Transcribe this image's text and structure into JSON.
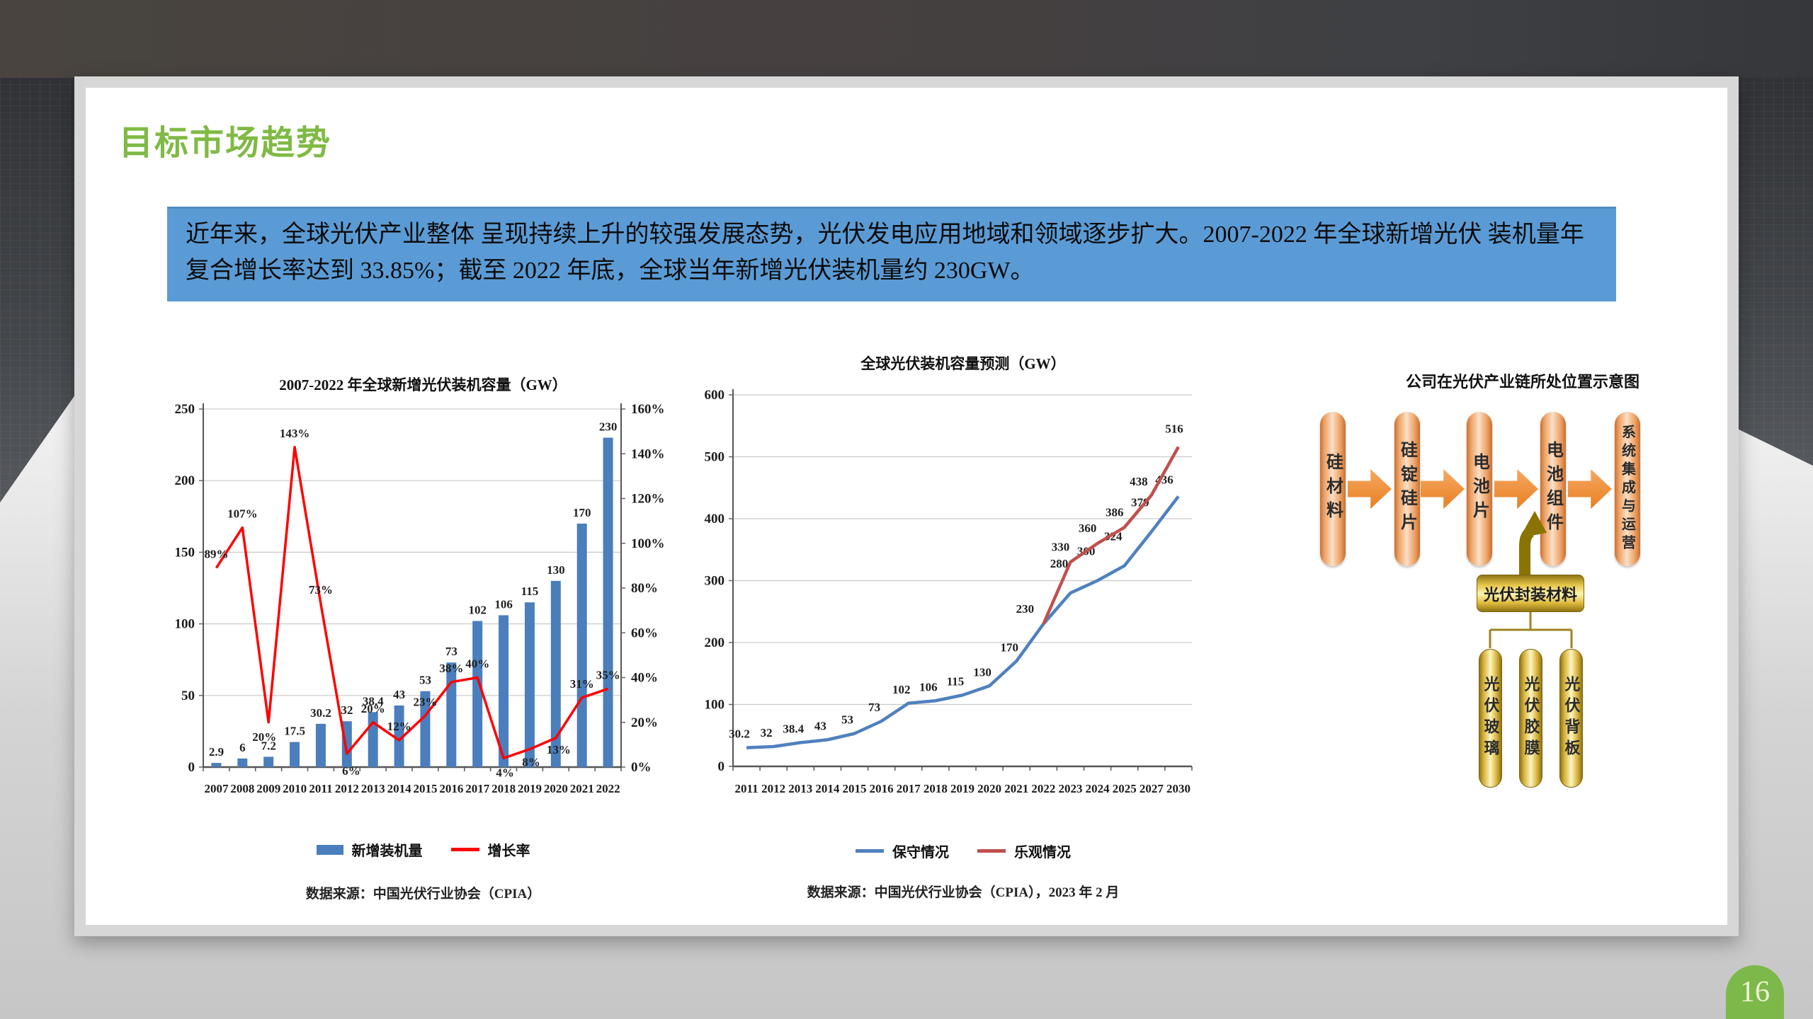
{
  "page_badge": {
    "number": "16"
  },
  "slide": {
    "title": "目标市场趋势",
    "intro_text": "近年来，全球光伏产业整体 呈现持续上升的较强发展态势，光伏发电应用地域和领域逐步扩大。2007-2022 年全球新增光伏 装机量年复合增长率达到 33.85%；截至 2022 年底，全球当年新增光伏装机量约 230GW。"
  },
  "colors": {
    "title_green": "#80ba45",
    "intro_box_blue": "#5b9bd5",
    "bar_blue": "#4a7ebc",
    "growth_line_red": "#ff0000",
    "conservative_blue": "#4f81bd",
    "optimistic_red": "#c0504d",
    "chain_orange": "#e87d1e",
    "gold": "#d4af37",
    "badge_green": "#7cb84a"
  },
  "chart_data": [
    {
      "id": "chart-left",
      "type": "bar",
      "title": "2007-2022 年全球新增光伏装机容量（GW）",
      "categories": [
        "2007",
        "2008",
        "2009",
        "2010",
        "2011",
        "2012",
        "2013",
        "2014",
        "2015",
        "2016",
        "2017",
        "2018",
        "2019",
        "2020",
        "2021",
        "2022"
      ],
      "series": [
        {
          "name": "新增装机量",
          "kind": "bar",
          "axis": "left",
          "color": "#4a7ebc",
          "values": [
            2.9,
            6,
            7.2,
            17.5,
            30.2,
            32,
            38.4,
            43,
            53,
            73,
            102,
            106,
            115,
            130,
            170,
            230
          ],
          "labels": [
            "2.9",
            "6",
            "7.2",
            "17.5",
            "30.2",
            "32",
            "38.4",
            "43",
            "53",
            "73",
            "102",
            "106",
            "115",
            "130",
            "170",
            "230"
          ]
        },
        {
          "name": "增长率",
          "kind": "line",
          "axis": "right",
          "color": "#ff0000",
          "values": [
            89,
            107,
            20,
            143,
            73,
            6,
            20,
            12,
            23,
            38,
            40,
            4,
            8,
            13,
            31,
            35
          ],
          "labels": [
            "89%",
            "107%",
            "20%",
            "143%",
            "73%",
            "6%",
            "20%",
            "12%",
            "23%",
            "38%",
            "40%",
            "4%",
            "8%",
            "13%",
            "31%",
            "35%"
          ]
        }
      ],
      "left_axis": {
        "min": 0,
        "max": 250,
        "step": 50,
        "labels": [
          "0",
          "50",
          "100",
          "150",
          "200",
          "250"
        ]
      },
      "right_axis": {
        "min": 0,
        "max": 160,
        "step": 20,
        "labels": [
          "0%",
          "20%",
          "40%",
          "60%",
          "80%",
          "100%",
          "120%",
          "140%",
          "160%"
        ]
      },
      "grid": true,
      "legend_position": "bottom",
      "source": "数据来源：中国光伏行业协会（CPIA）"
    },
    {
      "id": "chart-forecast",
      "type": "line",
      "title": "全球光伏装机容量预测（GW）",
      "categories": [
        "2011",
        "2012",
        "2013",
        "2014",
        "2015",
        "2016",
        "2017",
        "2018",
        "2019",
        "2020",
        "2021",
        "2022",
        "2023",
        "2024",
        "2025",
        "2027",
        "2030"
      ],
      "series": [
        {
          "name": "保守情况",
          "kind": "line",
          "axis": "left",
          "color": "#4f81bd",
          "values": [
            30.2,
            32,
            38.4,
            43,
            53,
            73,
            102,
            106,
            115,
            130,
            170,
            230,
            280,
            300,
            324,
            379,
            436
          ],
          "labels": [
            "30.2",
            "32",
            "38.4",
            "43",
            "53",
            "73",
            "102",
            "106",
            "115",
            "130",
            "170",
            "230",
            "280",
            "300",
            "324",
            "379",
            "436"
          ]
        },
        {
          "name": "乐观情况",
          "kind": "line",
          "axis": "left",
          "color": "#c0504d",
          "values": [
            null,
            null,
            null,
            null,
            null,
            null,
            null,
            null,
            null,
            null,
            null,
            230,
            330,
            360,
            386,
            438,
            516
          ],
          "labels": [
            "",
            "",
            "",
            "",
            "",
            "",
            "",
            "",
            "",
            "",
            "",
            "",
            "330",
            "360",
            "386",
            "438",
            "516"
          ]
        }
      ],
      "left_axis": {
        "min": 0,
        "max": 600,
        "step": 100,
        "labels": [
          "0",
          "100",
          "200",
          "300",
          "400",
          "500",
          "600"
        ]
      },
      "grid": true,
      "legend_position": "bottom",
      "source": "数据来源：中国光伏行业协会（CPIA），2023 年 2 月"
    }
  ],
  "diagram": {
    "title": "公司在光伏产业链所处位置示意图",
    "chain": [
      "硅材料",
      "硅锭硅片",
      "电池片",
      "电池组件",
      "系统集成与运营"
    ],
    "encapsulation_label": "光伏封装材料",
    "encapsulation_items": [
      "光伏玻璃",
      "光伏胶膜",
      "光伏背板"
    ]
  }
}
